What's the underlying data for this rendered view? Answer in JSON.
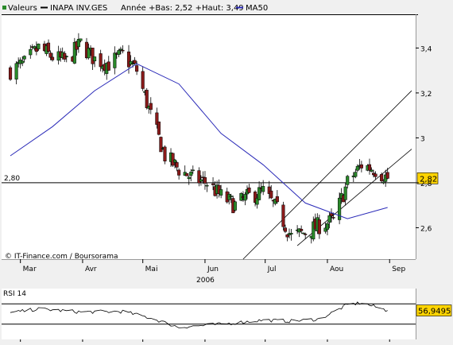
{
  "legend": {
    "series_label": "Valeurs",
    "stock_label": "INAPA INV.GES",
    "range_label": "Année +Bas: 2,52 +Haut: 3,49",
    "ma_label": "MA50"
  },
  "colors": {
    "background": "#ffffff",
    "frame": "#f0f0f0",
    "up_candle": "#2a8a2a",
    "down_candle": "#8a1a1a",
    "ma50": "#2a2ab8",
    "trend_lines": "#000000",
    "last_price_box": "#ffd400"
  },
  "main_chart": {
    "watermark": "© IT-Finance.com / Boursorama",
    "year_label": "2006",
    "reference_level_label": "2,80",
    "last_price_label": "2,82",
    "y_ticks": [
      "3,4",
      "3,2",
      "3",
      "2,8",
      "2,6"
    ],
    "x_ticks": [
      "Mar",
      "Avr",
      "Mai",
      "Jun",
      "Jul",
      "Aou",
      "Sep"
    ]
  },
  "rsi_panel": {
    "label": "RSI 14",
    "last_value_label": "56,9495",
    "levels": [
      70,
      30
    ]
  },
  "chart_data": [
    {
      "type": "candlestick",
      "title": "INAPA INV.GES",
      "period": "2006",
      "y_range": [
        2.46,
        3.55
      ],
      "year_low": 2.52,
      "year_high": 3.49,
      "reference_level": 2.8,
      "last_close": 2.82,
      "weekly_approx_close": [
        {
          "date": "2006-02-24",
          "close": 3.3
        },
        {
          "date": "2006-03-03",
          "close": 3.33
        },
        {
          "date": "2006-03-10",
          "close": 3.4
        },
        {
          "date": "2006-03-17",
          "close": 3.36
        },
        {
          "date": "2006-03-24",
          "close": 3.34
        },
        {
          "date": "2006-03-31",
          "close": 3.42
        },
        {
          "date": "2006-04-07",
          "close": 3.35
        },
        {
          "date": "2006-04-14",
          "close": 3.33
        },
        {
          "date": "2006-04-21",
          "close": 3.37
        },
        {
          "date": "2006-04-28",
          "close": 3.3
        },
        {
          "date": "2006-05-05",
          "close": 3.1
        },
        {
          "date": "2006-05-12",
          "close": 2.92
        },
        {
          "date": "2006-05-19",
          "close": 2.86
        },
        {
          "date": "2006-05-26",
          "close": 2.82
        },
        {
          "date": "2006-06-02",
          "close": 2.8
        },
        {
          "date": "2006-06-09",
          "close": 2.74
        },
        {
          "date": "2006-06-16",
          "close": 2.7
        },
        {
          "date": "2006-06-23",
          "close": 2.74
        },
        {
          "date": "2006-06-30",
          "close": 2.76
        },
        {
          "date": "2006-07-07",
          "close": 2.68
        },
        {
          "date": "2006-07-14",
          "close": 2.56
        },
        {
          "date": "2006-07-21",
          "close": 2.58
        },
        {
          "date": "2006-07-28",
          "close": 2.61
        },
        {
          "date": "2006-08-04",
          "close": 2.63
        },
        {
          "date": "2006-08-11",
          "close": 2.8
        },
        {
          "date": "2006-08-18",
          "close": 2.88
        },
        {
          "date": "2006-08-25",
          "close": 2.86
        },
        {
          "date": "2006-08-31",
          "close": 2.82
        }
      ],
      "series": [
        {
          "name": "MA50",
          "values": [
            {
              "date": "2006-02-24",
              "close": 2.92
            },
            {
              "date": "2006-03-17",
              "close": 3.05
            },
            {
              "date": "2006-04-07",
              "close": 3.21
            },
            {
              "date": "2006-04-28",
              "close": 3.33
            },
            {
              "date": "2006-05-19",
              "close": 3.24
            },
            {
              "date": "2006-06-09",
              "close": 3.02
            },
            {
              "date": "2006-06-30",
              "close": 2.88
            },
            {
              "date": "2006-07-21",
              "close": 2.71
            },
            {
              "date": "2006-08-11",
              "close": 2.64
            },
            {
              "date": "2006-08-31",
              "close": 2.69
            }
          ]
        }
      ]
    },
    {
      "type": "line",
      "title": "RSI 14",
      "y_range": [
        0,
        100
      ],
      "levels": [
        70,
        30
      ],
      "last_value": 56.9495,
      "values": [
        {
          "date": "2006-02-24",
          "value": 52
        },
        {
          "date": "2006-03-10",
          "value": 60
        },
        {
          "date": "2006-03-31",
          "value": 54
        },
        {
          "date": "2006-04-21",
          "value": 55
        },
        {
          "date": "2006-05-05",
          "value": 42
        },
        {
          "date": "2006-05-19",
          "value": 24
        },
        {
          "date": "2006-06-09",
          "value": 30
        },
        {
          "date": "2006-06-30",
          "value": 38
        },
        {
          "date": "2006-07-14",
          "value": 36
        },
        {
          "date": "2006-07-28",
          "value": 40
        },
        {
          "date": "2006-08-11",
          "value": 68
        },
        {
          "date": "2006-08-18",
          "value": 72
        },
        {
          "date": "2006-08-31",
          "value": 56.9495
        }
      ]
    }
  ]
}
